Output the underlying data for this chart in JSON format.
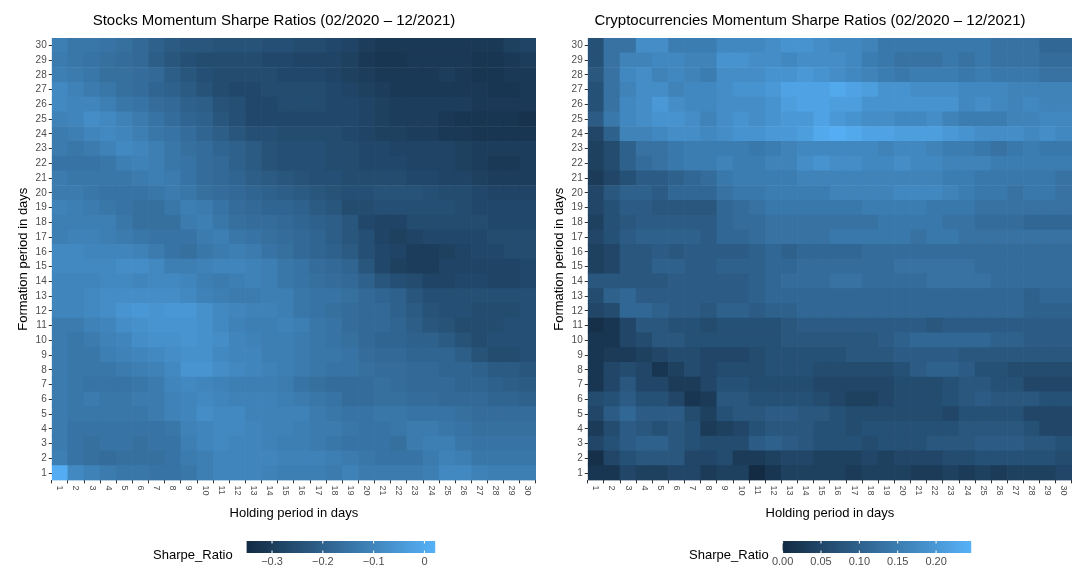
{
  "chart_data": [
    {
      "type": "heatmap",
      "title": "Stocks Momentum Sharpe Ratios (02/2020 – 12/2021)",
      "xlabel": "Holding period in days",
      "ylabel": "Formation period in days",
      "clabel": "Sharpe_Ratio",
      "categories": [
        "1",
        "2",
        "3",
        "4",
        "5",
        "6",
        "7",
        "8",
        "9",
        "10",
        "11",
        "12",
        "13",
        "14",
        "15",
        "16",
        "17",
        "18",
        "19",
        "20",
        "21",
        "22",
        "23",
        "24",
        "25",
        "26",
        "27",
        "28",
        "29",
        "30"
      ],
      "y_categories": [
        "30",
        "29",
        "28",
        "27",
        "26",
        "25",
        "24",
        "23",
        "22",
        "21",
        "20",
        "19",
        "18",
        "17",
        "16",
        "15",
        "14",
        "13",
        "12",
        "11",
        "10",
        "9",
        "8",
        "7",
        "6",
        "5",
        "4",
        "3",
        "2",
        "1"
      ],
      "clim": [
        -0.35,
        0.02
      ],
      "cticks": [
        -0.3,
        -0.2,
        -0.1,
        0.0
      ],
      "cells": [
        [
          -0.12,
          -0.14,
          -0.14,
          -0.15,
          -0.16,
          -0.18,
          -0.2,
          -0.22,
          -0.23,
          -0.23,
          -0.24,
          -0.24,
          -0.24,
          -0.25,
          -0.25,
          -0.26,
          -0.26,
          -0.27,
          -0.28,
          -0.3,
          -0.31,
          -0.31,
          -0.31,
          -0.31,
          -0.31,
          -0.31,
          -0.31,
          -0.31,
          -0.29,
          -0.28
        ],
        [
          -0.13,
          -0.14,
          -0.15,
          -0.16,
          -0.17,
          -0.18,
          -0.21,
          -0.23,
          -0.25,
          -0.26,
          -0.26,
          -0.26,
          -0.26,
          -0.27,
          -0.27,
          -0.28,
          -0.28,
          -0.28,
          -0.29,
          -0.31,
          -0.32,
          -0.32,
          -0.31,
          -0.31,
          -0.31,
          -0.31,
          -0.32,
          -0.32,
          -0.31,
          -0.3
        ],
        [
          -0.12,
          -0.13,
          -0.14,
          -0.16,
          -0.16,
          -0.17,
          -0.18,
          -0.21,
          -0.23,
          -0.25,
          -0.26,
          -0.26,
          -0.26,
          -0.26,
          -0.27,
          -0.27,
          -0.27,
          -0.28,
          -0.29,
          -0.3,
          -0.31,
          -0.31,
          -0.31,
          -0.31,
          -0.3,
          -0.31,
          -0.32,
          -0.32,
          -0.31,
          -0.31
        ],
        [
          -0.09,
          -0.11,
          -0.13,
          -0.14,
          -0.16,
          -0.17,
          -0.19,
          -0.2,
          -0.22,
          -0.24,
          -0.26,
          -0.27,
          -0.27,
          -0.26,
          -0.26,
          -0.26,
          -0.26,
          -0.27,
          -0.28,
          -0.29,
          -0.3,
          -0.31,
          -0.31,
          -0.31,
          -0.31,
          -0.31,
          -0.31,
          -0.32,
          -0.32,
          -0.31
        ],
        [
          -0.09,
          -0.1,
          -0.1,
          -0.12,
          -0.14,
          -0.15,
          -0.17,
          -0.18,
          -0.2,
          -0.21,
          -0.24,
          -0.25,
          -0.27,
          -0.27,
          -0.26,
          -0.26,
          -0.26,
          -0.27,
          -0.27,
          -0.28,
          -0.29,
          -0.3,
          -0.3,
          -0.3,
          -0.3,
          -0.3,
          -0.31,
          -0.31,
          -0.31,
          -0.31
        ],
        [
          -0.11,
          -0.1,
          -0.08,
          -0.09,
          -0.11,
          -0.13,
          -0.15,
          -0.17,
          -0.19,
          -0.2,
          -0.23,
          -0.25,
          -0.27,
          -0.27,
          -0.27,
          -0.27,
          -0.27,
          -0.27,
          -0.27,
          -0.28,
          -0.29,
          -0.3,
          -0.3,
          -0.3,
          -0.31,
          -0.32,
          -0.32,
          -0.32,
          -0.32,
          -0.33
        ],
        [
          -0.13,
          -0.12,
          -0.1,
          -0.09,
          -0.1,
          -0.12,
          -0.14,
          -0.15,
          -0.17,
          -0.19,
          -0.21,
          -0.23,
          -0.25,
          -0.25,
          -0.26,
          -0.26,
          -0.26,
          -0.26,
          -0.27,
          -0.28,
          -0.29,
          -0.29,
          -0.3,
          -0.3,
          -0.31,
          -0.31,
          -0.32,
          -0.32,
          -0.32,
          -0.32
        ],
        [
          -0.13,
          -0.14,
          -0.13,
          -0.11,
          -0.09,
          -0.1,
          -0.12,
          -0.14,
          -0.16,
          -0.17,
          -0.19,
          -0.2,
          -0.22,
          -0.24,
          -0.25,
          -0.25,
          -0.25,
          -0.26,
          -0.26,
          -0.27,
          -0.27,
          -0.28,
          -0.28,
          -0.28,
          -0.28,
          -0.29,
          -0.3,
          -0.3,
          -0.3,
          -0.3
        ],
        [
          -0.15,
          -0.15,
          -0.15,
          -0.14,
          -0.12,
          -0.11,
          -0.12,
          -0.14,
          -0.15,
          -0.17,
          -0.18,
          -0.2,
          -0.22,
          -0.24,
          -0.25,
          -0.25,
          -0.25,
          -0.26,
          -0.26,
          -0.27,
          -0.27,
          -0.27,
          -0.28,
          -0.28,
          -0.28,
          -0.29,
          -0.3,
          -0.31,
          -0.31,
          -0.3
        ],
        [
          -0.13,
          -0.14,
          -0.14,
          -0.14,
          -0.14,
          -0.13,
          -0.12,
          -0.13,
          -0.15,
          -0.17,
          -0.18,
          -0.19,
          -0.21,
          -0.22,
          -0.23,
          -0.24,
          -0.25,
          -0.25,
          -0.26,
          -0.26,
          -0.26,
          -0.26,
          -0.27,
          -0.27,
          -0.28,
          -0.28,
          -0.29,
          -0.3,
          -0.3,
          -0.3
        ],
        [
          -0.13,
          -0.13,
          -0.14,
          -0.15,
          -0.15,
          -0.15,
          -0.14,
          -0.13,
          -0.14,
          -0.16,
          -0.17,
          -0.18,
          -0.19,
          -0.2,
          -0.21,
          -0.22,
          -0.23,
          -0.24,
          -0.25,
          -0.25,
          -0.24,
          -0.24,
          -0.24,
          -0.25,
          -0.26,
          -0.26,
          -0.27,
          -0.28,
          -0.28,
          -0.28
        ],
        [
          -0.11,
          -0.12,
          -0.13,
          -0.14,
          -0.15,
          -0.16,
          -0.16,
          -0.14,
          -0.12,
          -0.13,
          -0.15,
          -0.17,
          -0.18,
          -0.19,
          -0.19,
          -0.2,
          -0.22,
          -0.23,
          -0.26,
          -0.26,
          -0.25,
          -0.25,
          -0.25,
          -0.25,
          -0.25,
          -0.26,
          -0.27,
          -0.27,
          -0.27,
          -0.27
        ],
        [
          -0.12,
          -0.12,
          -0.12,
          -0.12,
          -0.14,
          -0.16,
          -0.16,
          -0.16,
          -0.13,
          -0.12,
          -0.14,
          -0.16,
          -0.17,
          -0.17,
          -0.18,
          -0.19,
          -0.2,
          -0.21,
          -0.23,
          -0.27,
          -0.28,
          -0.28,
          -0.26,
          -0.26,
          -0.26,
          -0.26,
          -0.26,
          -0.27,
          -0.27,
          -0.27
        ],
        [
          -0.12,
          -0.11,
          -0.11,
          -0.12,
          -0.13,
          -0.14,
          -0.15,
          -0.15,
          -0.15,
          -0.13,
          -0.12,
          -0.14,
          -0.15,
          -0.16,
          -0.17,
          -0.18,
          -0.19,
          -0.21,
          -0.23,
          -0.25,
          -0.28,
          -0.29,
          -0.28,
          -0.27,
          -0.27,
          -0.27,
          -0.27,
          -0.26,
          -0.26,
          -0.26
        ],
        [
          -0.09,
          -0.09,
          -0.1,
          -0.1,
          -0.1,
          -0.11,
          -0.13,
          -0.15,
          -0.16,
          -0.14,
          -0.13,
          -0.12,
          -0.13,
          -0.15,
          -0.16,
          -0.18,
          -0.19,
          -0.2,
          -0.22,
          -0.25,
          -0.27,
          -0.28,
          -0.3,
          -0.3,
          -0.29,
          -0.28,
          -0.27,
          -0.27,
          -0.26,
          -0.26
        ],
        [
          -0.09,
          -0.09,
          -0.09,
          -0.09,
          -0.08,
          -0.08,
          -0.09,
          -0.12,
          -0.12,
          -0.11,
          -0.1,
          -0.1,
          -0.11,
          -0.12,
          -0.14,
          -0.15,
          -0.17,
          -0.18,
          -0.19,
          -0.23,
          -0.27,
          -0.29,
          -0.3,
          -0.3,
          -0.28,
          -0.28,
          -0.28,
          -0.28,
          -0.28,
          -0.27
        ],
        [
          -0.1,
          -0.1,
          -0.1,
          -0.09,
          -0.09,
          -0.1,
          -0.09,
          -0.09,
          -0.1,
          -0.12,
          -0.13,
          -0.12,
          -0.11,
          -0.12,
          -0.14,
          -0.15,
          -0.16,
          -0.17,
          -0.18,
          -0.2,
          -0.23,
          -0.25,
          -0.26,
          -0.28,
          -0.28,
          -0.27,
          -0.27,
          -0.28,
          -0.28,
          -0.27
        ],
        [
          -0.1,
          -0.1,
          -0.09,
          -0.08,
          -0.08,
          -0.08,
          -0.08,
          -0.08,
          -0.09,
          -0.11,
          -0.12,
          -0.13,
          -0.13,
          -0.12,
          -0.12,
          -0.14,
          -0.15,
          -0.15,
          -0.16,
          -0.18,
          -0.19,
          -0.2,
          -0.23,
          -0.25,
          -0.25,
          -0.25,
          -0.25,
          -0.25,
          -0.25,
          -0.25
        ],
        [
          -0.1,
          -0.1,
          -0.09,
          -0.08,
          -0.06,
          -0.05,
          -0.06,
          -0.05,
          -0.05,
          -0.07,
          -0.09,
          -0.1,
          -0.11,
          -0.11,
          -0.12,
          -0.14,
          -0.15,
          -0.16,
          -0.17,
          -0.18,
          -0.18,
          -0.2,
          -0.22,
          -0.24,
          -0.25,
          -0.25,
          -0.26,
          -0.26,
          -0.26,
          -0.25
        ],
        [
          -0.13,
          -0.13,
          -0.11,
          -0.1,
          -0.08,
          -0.07,
          -0.06,
          -0.06,
          -0.06,
          -0.07,
          -0.09,
          -0.11,
          -0.12,
          -0.12,
          -0.11,
          -0.12,
          -0.14,
          -0.15,
          -0.17,
          -0.18,
          -0.18,
          -0.19,
          -0.21,
          -0.23,
          -0.24,
          -0.26,
          -0.26,
          -0.26,
          -0.25,
          -0.25
        ],
        [
          -0.13,
          -0.14,
          -0.13,
          -0.11,
          -0.1,
          -0.08,
          -0.07,
          -0.07,
          -0.06,
          -0.07,
          -0.08,
          -0.1,
          -0.11,
          -0.12,
          -0.12,
          -0.13,
          -0.14,
          -0.15,
          -0.16,
          -0.18,
          -0.19,
          -0.19,
          -0.2,
          -0.2,
          -0.22,
          -0.24,
          -0.26,
          -0.25,
          -0.25,
          -0.25
        ],
        [
          -0.13,
          -0.14,
          -0.14,
          -0.12,
          -0.11,
          -0.1,
          -0.09,
          -0.08,
          -0.07,
          -0.07,
          -0.09,
          -0.1,
          -0.1,
          -0.12,
          -0.12,
          -0.13,
          -0.14,
          -0.14,
          -0.15,
          -0.17,
          -0.18,
          -0.18,
          -0.19,
          -0.19,
          -0.19,
          -0.21,
          -0.24,
          -0.26,
          -0.26,
          -0.25
        ],
        [
          -0.13,
          -0.14,
          -0.14,
          -0.14,
          -0.13,
          -0.12,
          -0.11,
          -0.09,
          -0.06,
          -0.06,
          -0.08,
          -0.09,
          -0.1,
          -0.11,
          -0.12,
          -0.13,
          -0.14,
          -0.15,
          -0.15,
          -0.16,
          -0.17,
          -0.17,
          -0.18,
          -0.18,
          -0.19,
          -0.19,
          -0.2,
          -0.22,
          -0.22,
          -0.23
        ],
        [
          -0.13,
          -0.14,
          -0.15,
          -0.15,
          -0.15,
          -0.14,
          -0.13,
          -0.1,
          -0.09,
          -0.1,
          -0.11,
          -0.12,
          -0.12,
          -0.12,
          -0.13,
          -0.15,
          -0.16,
          -0.17,
          -0.17,
          -0.17,
          -0.16,
          -0.17,
          -0.18,
          -0.18,
          -0.18,
          -0.19,
          -0.19,
          -0.2,
          -0.21,
          -0.22
        ],
        [
          -0.13,
          -0.14,
          -0.13,
          -0.14,
          -0.14,
          -0.13,
          -0.13,
          -0.11,
          -0.1,
          -0.09,
          -0.1,
          -0.11,
          -0.11,
          -0.11,
          -0.12,
          -0.13,
          -0.14,
          -0.15,
          -0.17,
          -0.17,
          -0.16,
          -0.16,
          -0.17,
          -0.17,
          -0.18,
          -0.18,
          -0.18,
          -0.19,
          -0.19,
          -0.2
        ],
        [
          -0.13,
          -0.14,
          -0.14,
          -0.14,
          -0.14,
          -0.14,
          -0.13,
          -0.11,
          -0.1,
          -0.08,
          -0.09,
          -0.09,
          -0.11,
          -0.11,
          -0.11,
          -0.11,
          -0.13,
          -0.14,
          -0.15,
          -0.15,
          -0.14,
          -0.14,
          -0.15,
          -0.15,
          -0.15,
          -0.16,
          -0.17,
          -0.17,
          -0.17,
          -0.17
        ],
        [
          -0.13,
          -0.15,
          -0.15,
          -0.15,
          -0.15,
          -0.15,
          -0.15,
          -0.14,
          -0.11,
          -0.1,
          -0.09,
          -0.09,
          -0.1,
          -0.11,
          -0.11,
          -0.12,
          -0.13,
          -0.13,
          -0.14,
          -0.15,
          -0.15,
          -0.14,
          -0.13,
          -0.13,
          -0.14,
          -0.15,
          -0.16,
          -0.16,
          -0.16,
          -0.16
        ],
        [
          -0.13,
          -0.15,
          -0.16,
          -0.15,
          -0.15,
          -0.16,
          -0.15,
          -0.15,
          -0.12,
          -0.1,
          -0.09,
          -0.1,
          -0.1,
          -0.11,
          -0.12,
          -0.12,
          -0.13,
          -0.14,
          -0.15,
          -0.15,
          -0.15,
          -0.16,
          -0.13,
          -0.12,
          -0.12,
          -0.14,
          -0.15,
          -0.15,
          -0.15,
          -0.15
        ],
        [
          -0.12,
          -0.15,
          -0.16,
          -0.17,
          -0.16,
          -0.16,
          -0.16,
          -0.15,
          -0.13,
          -0.12,
          -0.1,
          -0.1,
          -0.1,
          -0.1,
          -0.11,
          -0.11,
          -0.11,
          -0.12,
          -0.13,
          -0.14,
          -0.15,
          -0.15,
          -0.15,
          -0.13,
          -0.11,
          -0.12,
          -0.14,
          -0.14,
          -0.14,
          -0.14
        ],
        [
          0.01,
          -0.09,
          -0.11,
          -0.13,
          -0.14,
          -0.14,
          -0.15,
          -0.15,
          -0.14,
          -0.12,
          -0.1,
          -0.1,
          -0.1,
          -0.11,
          -0.12,
          -0.12,
          -0.12,
          -0.13,
          -0.11,
          -0.13,
          -0.13,
          -0.13,
          -0.13,
          -0.12,
          -0.09,
          -0.09,
          -0.11,
          -0.12,
          -0.12,
          -0.12
        ]
      ]
    },
    {
      "type": "heatmap",
      "title": "Cryptocurrencies Momentum Sharpe Ratios (02/2020 – 12/2021)",
      "xlabel": "Holding period in days",
      "ylabel": "Formation period in days",
      "clabel": "Sharpe_Ratio",
      "categories": [
        "1",
        "2",
        "3",
        "4",
        "5",
        "6",
        "7",
        "8",
        "9",
        "10",
        "11",
        "12",
        "13",
        "14",
        "15",
        "16",
        "17",
        "18",
        "19",
        "20",
        "21",
        "22",
        "23",
        "24",
        "25",
        "26",
        "27",
        "28",
        "29",
        "30"
      ],
      "y_categories": [
        "30",
        "29",
        "28",
        "27",
        "26",
        "25",
        "24",
        "23",
        "22",
        "21",
        "20",
        "19",
        "18",
        "17",
        "16",
        "15",
        "14",
        "13",
        "12",
        "11",
        "10",
        "9",
        "8",
        "7",
        "6",
        "5",
        "4",
        "3",
        "2",
        "1"
      ],
      "clim": [
        0.0,
        0.245
      ],
      "cticks": [
        {
          "value": 0,
          "label": "0.00"
        },
        0.05,
        {
          "value": 0.1,
          "label": "0.10"
        },
        0.15,
        {
          "value": 0.2,
          "label": "0.20"
        }
      ],
      "cells": [
        [
          0.07,
          0.13,
          0.13,
          0.18,
          0.18,
          0.15,
          0.15,
          0.15,
          0.17,
          0.17,
          0.17,
          0.18,
          0.19,
          0.19,
          0.18,
          0.17,
          0.17,
          0.16,
          0.14,
          0.14,
          0.14,
          0.14,
          0.14,
          0.14,
          0.14,
          0.13,
          0.13,
          0.13,
          0.11,
          0.11
        ],
        [
          0.07,
          0.13,
          0.16,
          0.16,
          0.17,
          0.17,
          0.16,
          0.16,
          0.19,
          0.19,
          0.18,
          0.18,
          0.17,
          0.18,
          0.18,
          0.18,
          0.17,
          0.15,
          0.14,
          0.13,
          0.13,
          0.13,
          0.14,
          0.13,
          0.14,
          0.13,
          0.13,
          0.13,
          0.12,
          0.12
        ],
        [
          0.08,
          0.13,
          0.17,
          0.18,
          0.16,
          0.17,
          0.16,
          0.15,
          0.18,
          0.18,
          0.18,
          0.19,
          0.19,
          0.2,
          0.19,
          0.18,
          0.17,
          0.16,
          0.15,
          0.14,
          0.15,
          0.15,
          0.15,
          0.14,
          0.15,
          0.14,
          0.14,
          0.14,
          0.13,
          0.13
        ],
        [
          0.07,
          0.13,
          0.16,
          0.18,
          0.18,
          0.16,
          0.17,
          0.17,
          0.18,
          0.19,
          0.19,
          0.2,
          0.22,
          0.22,
          0.22,
          0.23,
          0.22,
          0.21,
          0.19,
          0.19,
          0.18,
          0.18,
          0.18,
          0.17,
          0.17,
          0.17,
          0.16,
          0.16,
          0.16,
          0.16
        ],
        [
          0.07,
          0.13,
          0.17,
          0.18,
          0.2,
          0.18,
          0.17,
          0.17,
          0.18,
          0.18,
          0.18,
          0.19,
          0.21,
          0.22,
          0.22,
          0.21,
          0.21,
          0.19,
          0.19,
          0.19,
          0.19,
          0.19,
          0.19,
          0.17,
          0.18,
          0.17,
          0.16,
          0.17,
          0.16,
          0.16
        ],
        [
          0.09,
          0.14,
          0.17,
          0.18,
          0.19,
          0.19,
          0.18,
          0.16,
          0.18,
          0.19,
          0.18,
          0.19,
          0.2,
          0.2,
          0.22,
          0.2,
          0.19,
          0.18,
          0.18,
          0.17,
          0.17,
          0.18,
          0.16,
          0.15,
          0.15,
          0.15,
          0.16,
          0.16,
          0.17,
          0.17
        ],
        [
          0.05,
          0.1,
          0.16,
          0.16,
          0.17,
          0.18,
          0.18,
          0.17,
          0.18,
          0.19,
          0.19,
          0.2,
          0.2,
          0.21,
          0.23,
          0.24,
          0.23,
          0.22,
          0.22,
          0.21,
          0.21,
          0.21,
          0.2,
          0.19,
          0.18,
          0.18,
          0.18,
          0.17,
          0.18,
          0.17
        ],
        [
          0.04,
          0.06,
          0.1,
          0.13,
          0.13,
          0.14,
          0.15,
          0.15,
          0.15,
          0.15,
          0.14,
          0.15,
          0.16,
          0.17,
          0.17,
          0.17,
          0.17,
          0.17,
          0.16,
          0.17,
          0.17,
          0.16,
          0.15,
          0.15,
          0.14,
          0.13,
          0.14,
          0.15,
          0.14,
          0.14
        ],
        [
          0.04,
          0.06,
          0.1,
          0.12,
          0.13,
          0.14,
          0.15,
          0.15,
          0.16,
          0.15,
          0.15,
          0.16,
          0.16,
          0.18,
          0.19,
          0.18,
          0.18,
          0.17,
          0.17,
          0.18,
          0.17,
          0.17,
          0.16,
          0.16,
          0.16,
          0.15,
          0.15,
          0.15,
          0.15,
          0.15
        ],
        [
          0.03,
          0.05,
          0.07,
          0.09,
          0.09,
          0.1,
          0.11,
          0.12,
          0.14,
          0.15,
          0.15,
          0.15,
          0.15,
          0.16,
          0.16,
          0.16,
          0.16,
          0.16,
          0.16,
          0.16,
          0.16,
          0.16,
          0.15,
          0.15,
          0.14,
          0.14,
          0.14,
          0.14,
          0.14,
          0.13
        ],
        [
          0.05,
          0.08,
          0.1,
          0.1,
          0.09,
          0.11,
          0.11,
          0.11,
          0.13,
          0.14,
          0.14,
          0.15,
          0.15,
          0.15,
          0.15,
          0.16,
          0.16,
          0.16,
          0.16,
          0.17,
          0.17,
          0.17,
          0.16,
          0.15,
          0.14,
          0.14,
          0.13,
          0.14,
          0.14,
          0.13
        ],
        [
          0.05,
          0.07,
          0.09,
          0.09,
          0.08,
          0.08,
          0.08,
          0.08,
          0.11,
          0.12,
          0.13,
          0.14,
          0.14,
          0.14,
          0.14,
          0.14,
          0.14,
          0.15,
          0.15,
          0.15,
          0.15,
          0.14,
          0.14,
          0.14,
          0.13,
          0.13,
          0.13,
          0.13,
          0.13,
          0.13
        ],
        [
          0.04,
          0.07,
          0.08,
          0.09,
          0.09,
          0.09,
          0.09,
          0.09,
          0.11,
          0.12,
          0.12,
          0.13,
          0.13,
          0.13,
          0.13,
          0.13,
          0.13,
          0.13,
          0.14,
          0.14,
          0.14,
          0.14,
          0.13,
          0.13,
          0.12,
          0.12,
          0.12,
          0.11,
          0.11,
          0.11
        ],
        [
          0.05,
          0.07,
          0.09,
          0.1,
          0.1,
          0.1,
          0.1,
          0.09,
          0.11,
          0.11,
          0.12,
          0.13,
          0.13,
          0.13,
          0.13,
          0.14,
          0.14,
          0.14,
          0.14,
          0.14,
          0.13,
          0.14,
          0.14,
          0.13,
          0.13,
          0.13,
          0.13,
          0.13,
          0.13,
          0.13
        ],
        [
          0.04,
          0.05,
          0.08,
          0.08,
          0.09,
          0.08,
          0.09,
          0.09,
          0.09,
          0.09,
          0.1,
          0.11,
          0.1,
          0.11,
          0.11,
          0.11,
          0.11,
          0.12,
          0.12,
          0.12,
          0.12,
          0.12,
          0.12,
          0.12,
          0.12,
          0.12,
          0.12,
          0.12,
          0.12,
          0.12
        ],
        [
          0.04,
          0.05,
          0.08,
          0.08,
          0.1,
          0.1,
          0.09,
          0.09,
          0.1,
          0.1,
          0.1,
          0.11,
          0.11,
          0.12,
          0.12,
          0.12,
          0.12,
          0.12,
          0.12,
          0.13,
          0.13,
          0.13,
          0.13,
          0.13,
          0.12,
          0.12,
          0.12,
          0.12,
          0.12,
          0.12
        ],
        [
          0.08,
          0.08,
          0.08,
          0.08,
          0.08,
          0.09,
          0.09,
          0.09,
          0.09,
          0.09,
          0.1,
          0.11,
          0.12,
          0.12,
          0.12,
          0.13,
          0.13,
          0.12,
          0.12,
          0.12,
          0.12,
          0.13,
          0.13,
          0.13,
          0.13,
          0.12,
          0.12,
          0.12,
          0.12,
          0.12
        ],
        [
          0.06,
          0.1,
          0.11,
          0.09,
          0.09,
          0.09,
          0.09,
          0.09,
          0.09,
          0.09,
          0.1,
          0.11,
          0.11,
          0.11,
          0.11,
          0.11,
          0.11,
          0.11,
          0.11,
          0.11,
          0.11,
          0.11,
          0.11,
          0.11,
          0.11,
          0.11,
          0.11,
          0.1,
          0.11,
          0.11
        ],
        [
          0.05,
          0.06,
          0.11,
          0.11,
          0.1,
          0.09,
          0.09,
          0.08,
          0.1,
          0.1,
          0.09,
          0.1,
          0.1,
          0.11,
          0.11,
          0.11,
          0.11,
          0.11,
          0.11,
          0.11,
          0.11,
          0.11,
          0.11,
          0.11,
          0.11,
          0.11,
          0.11,
          0.1,
          0.1,
          0.1
        ],
        [
          0.01,
          0.02,
          0.05,
          0.08,
          0.08,
          0.07,
          0.07,
          0.06,
          0.07,
          0.07,
          0.07,
          0.07,
          0.08,
          0.09,
          0.09,
          0.09,
          0.09,
          0.09,
          0.09,
          0.09,
          0.09,
          0.08,
          0.09,
          0.09,
          0.09,
          0.09,
          0.09,
          0.09,
          0.09,
          0.09
        ],
        [
          0.02,
          0.02,
          0.05,
          0.06,
          0.08,
          0.08,
          0.07,
          0.07,
          0.07,
          0.07,
          0.07,
          0.07,
          0.08,
          0.08,
          0.08,
          0.08,
          0.08,
          0.08,
          0.09,
          0.1,
          0.11,
          0.11,
          0.11,
          0.11,
          0.11,
          0.1,
          0.1,
          0.09,
          0.09,
          0.09
        ],
        [
          0.02,
          0.03,
          0.03,
          0.04,
          0.05,
          0.06,
          0.06,
          0.05,
          0.05,
          0.05,
          0.06,
          0.07,
          0.07,
          0.07,
          0.07,
          0.07,
          0.08,
          0.08,
          0.08,
          0.09,
          0.09,
          0.09,
          0.09,
          0.08,
          0.08,
          0.08,
          0.08,
          0.08,
          0.08,
          0.08
        ],
        [
          0.02,
          0.05,
          0.06,
          0.05,
          0.02,
          0.04,
          0.06,
          0.05,
          0.06,
          0.06,
          0.06,
          0.07,
          0.07,
          0.07,
          0.06,
          0.06,
          0.06,
          0.06,
          0.06,
          0.07,
          0.09,
          0.1,
          0.1,
          0.09,
          0.07,
          0.07,
          0.06,
          0.06,
          0.06,
          0.06
        ],
        [
          0.02,
          0.05,
          0.08,
          0.05,
          0.05,
          0.03,
          0.03,
          0.05,
          0.07,
          0.07,
          0.06,
          0.06,
          0.06,
          0.06,
          0.05,
          0.05,
          0.05,
          0.05,
          0.05,
          0.06,
          0.06,
          0.06,
          0.07,
          0.08,
          0.08,
          0.07,
          0.07,
          0.05,
          0.05,
          0.05
        ],
        [
          0.06,
          0.07,
          0.09,
          0.07,
          0.07,
          0.05,
          0.02,
          0.03,
          0.08,
          0.08,
          0.07,
          0.07,
          0.07,
          0.07,
          0.06,
          0.05,
          0.04,
          0.04,
          0.05,
          0.06,
          0.06,
          0.06,
          0.07,
          0.08,
          0.09,
          0.08,
          0.08,
          0.08,
          0.07,
          0.07
        ],
        [
          0.05,
          0.09,
          0.11,
          0.09,
          0.09,
          0.09,
          0.06,
          0.04,
          0.07,
          0.08,
          0.08,
          0.09,
          0.09,
          0.08,
          0.08,
          0.07,
          0.06,
          0.06,
          0.06,
          0.06,
          0.06,
          0.06,
          0.05,
          0.07,
          0.07,
          0.07,
          0.07,
          0.05,
          0.05,
          0.05
        ],
        [
          0.03,
          0.06,
          0.09,
          0.08,
          0.07,
          0.08,
          0.07,
          0.03,
          0.04,
          0.05,
          0.07,
          0.08,
          0.08,
          0.08,
          0.07,
          0.07,
          0.06,
          0.07,
          0.07,
          0.07,
          0.07,
          0.07,
          0.07,
          0.08,
          0.08,
          0.08,
          0.08,
          0.07,
          0.05,
          0.05
        ],
        [
          0.05,
          0.07,
          0.09,
          0.1,
          0.1,
          0.08,
          0.07,
          0.06,
          0.06,
          0.06,
          0.09,
          0.1,
          0.09,
          0.08,
          0.07,
          0.07,
          0.07,
          0.06,
          0.07,
          0.07,
          0.07,
          0.08,
          0.08,
          0.08,
          0.09,
          0.09,
          0.09,
          0.08,
          0.08,
          0.07
        ],
        [
          0.01,
          0.05,
          0.07,
          0.08,
          0.08,
          0.08,
          0.05,
          0.05,
          0.06,
          0.03,
          0.03,
          0.04,
          0.05,
          0.05,
          0.04,
          0.04,
          0.04,
          0.05,
          0.04,
          0.05,
          0.05,
          0.05,
          0.06,
          0.06,
          0.07,
          0.07,
          0.07,
          0.07,
          0.07,
          0.06
        ],
        [
          0.02,
          0.02,
          0.05,
          0.04,
          0.04,
          0.05,
          0.05,
          0.03,
          0.04,
          0.04,
          0.0,
          0.02,
          0.04,
          0.04,
          0.04,
          0.04,
          0.03,
          0.04,
          0.04,
          0.04,
          0.03,
          0.03,
          0.04,
          0.03,
          0.04,
          0.03,
          0.04,
          0.04,
          0.04,
          0.05
        ]
      ]
    }
  ]
}
